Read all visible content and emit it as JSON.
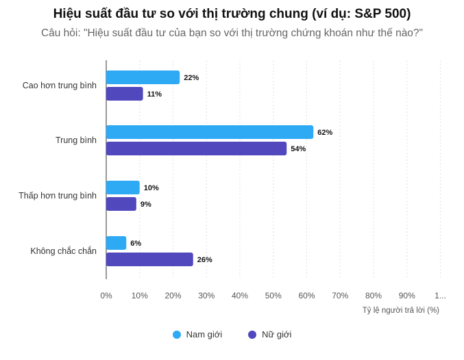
{
  "chart_data": {
    "type": "bar",
    "orientation": "horizontal",
    "title": "Hiệu suất đầu tư so với thị trường chung (ví dụ: S&P 500)",
    "subtitle": "Câu hỏi: \"Hiệu suất đầu tư của bạn so với thị trường chứng khoán như thế nào?\"",
    "xlabel": "Tỷ lệ người trả lời (%)",
    "ylabel": "",
    "xlim": [
      0,
      100
    ],
    "grid": true,
    "legend_position": "bottom",
    "categories": [
      "Cao hơn trung bình",
      "Trung bình",
      "Thấp hơn trung bình",
      "Không chắc chắn"
    ],
    "tick_labels": [
      "0%",
      "10%",
      "20%",
      "30%",
      "40%",
      "50%",
      "60%",
      "70%",
      "80%",
      "90%",
      "1..."
    ],
    "series": [
      {
        "name": "Nam giới",
        "color": "#2eaaf5",
        "values": [
          22,
          62,
          10,
          6
        ],
        "labels": [
          "22%",
          "62%",
          "10%",
          "6%"
        ]
      },
      {
        "name": "Nữ giới",
        "color": "#5148be",
        "values": [
          11,
          54,
          9,
          26
        ],
        "labels": [
          "11%",
          "54%",
          "9%",
          "26%"
        ]
      }
    ]
  }
}
